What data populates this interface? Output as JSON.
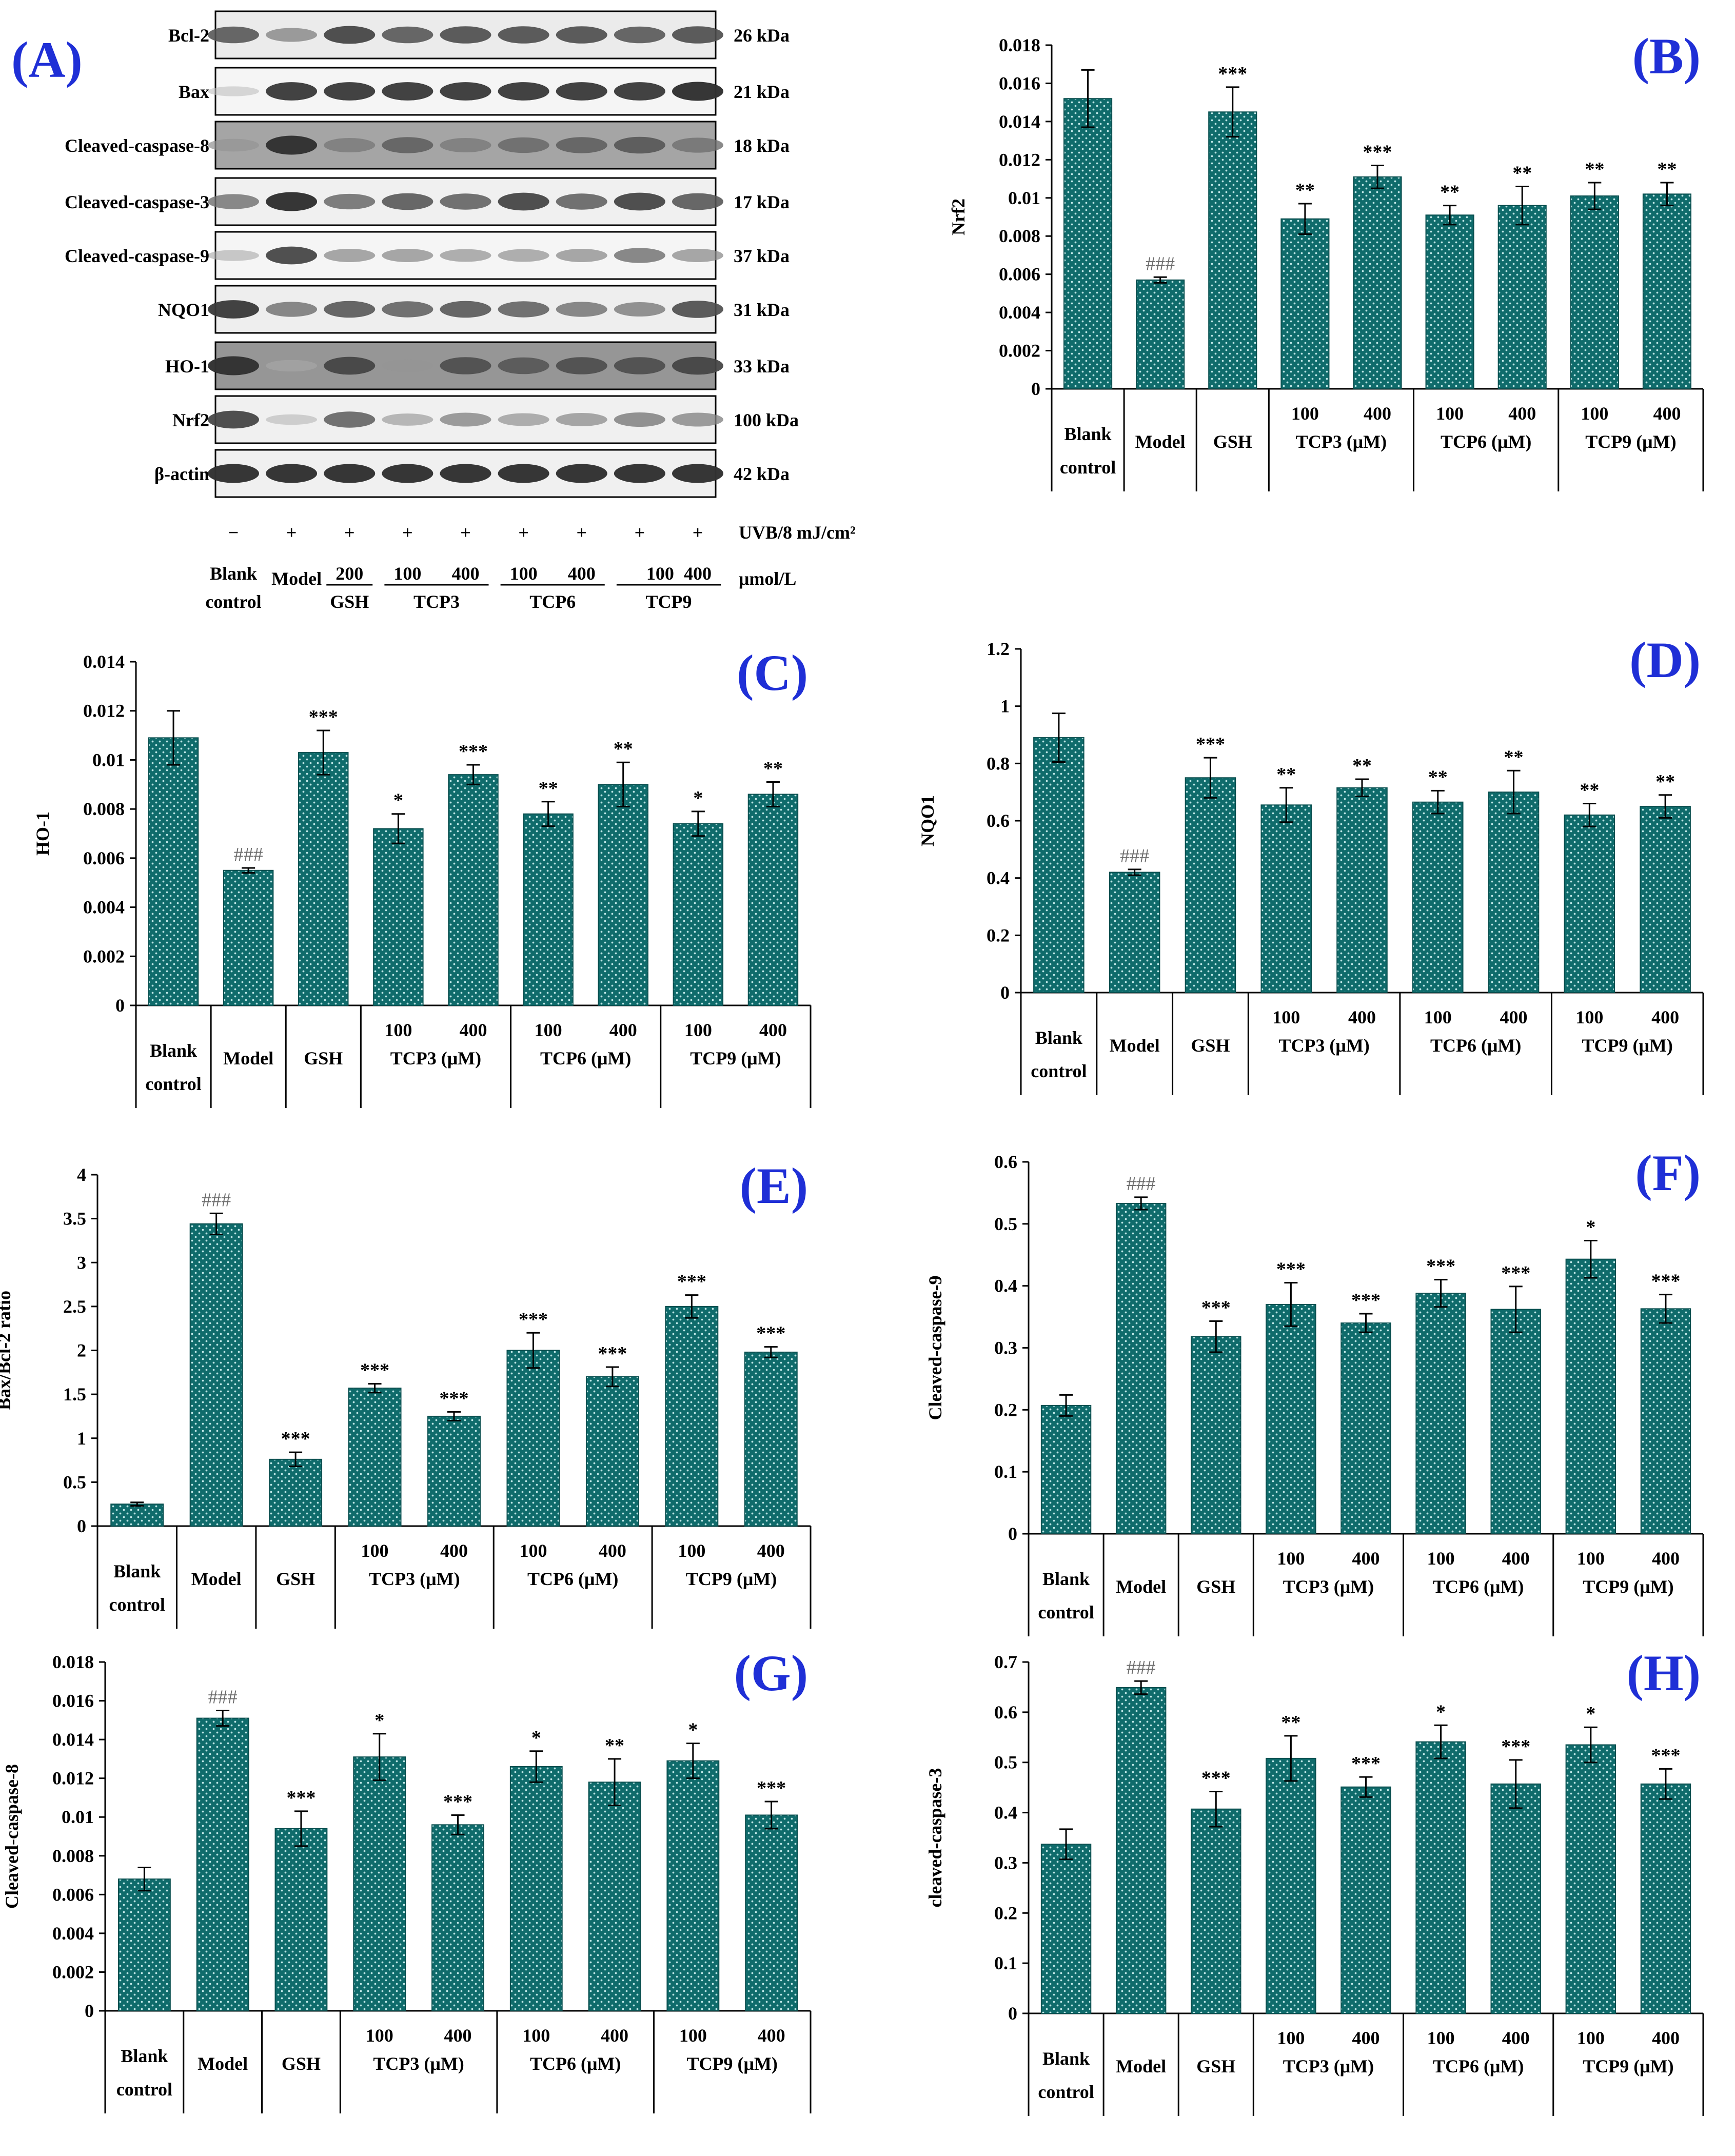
{
  "colors": {
    "bar": "#0f6b6b",
    "bar_dots": "#bfe6e6",
    "panel_label": "#1f2fd6",
    "hash": "#6b6b6b"
  },
  "western_blot": {
    "label": "(A)",
    "proteins": [
      {
        "name": "Bcl-2",
        "kda": "26 kDa"
      },
      {
        "name": "Bax",
        "kda": "21 kDa"
      },
      {
        "name": "Cleaved-caspase-8",
        "kda": "18 kDa"
      },
      {
        "name": "Cleaved-caspase-3",
        "kda": "17 kDa"
      },
      {
        "name": "Cleaved-caspase-9",
        "kda": "37 kDa"
      },
      {
        "name": "NQO1",
        "kda": "31 kDa"
      },
      {
        "name": "HO-1",
        "kda": "33 kDa"
      },
      {
        "name": "Nrf2",
        "kda": "100 kDa"
      },
      {
        "name": "β-actin",
        "kda": "42 kDa"
      }
    ],
    "uvb_signs": [
      "−",
      "+",
      "+",
      "+",
      "+",
      "+",
      "+",
      "+",
      "+"
    ],
    "uvb_label": "UVB/8 mJ/cm²",
    "unit_label": "μmol/L",
    "doses": [
      "200",
      "100",
      "400",
      "100",
      "400",
      "100",
      "400"
    ],
    "group_blank_line1": "Blank",
    "group_blank_line2": "control",
    "group_model": "Model",
    "groups": [
      "GSH",
      "TCP3",
      "TCP6",
      "TCP9"
    ]
  },
  "x_axis": {
    "blank_line1": "Blank",
    "blank_line2": "control",
    "model": "Model",
    "gsh": "GSH",
    "dose_low": "100",
    "dose_high": "400",
    "groups": [
      "TCP3 (μM)",
      "TCP6 (μM)",
      "TCP9 (μM)"
    ]
  },
  "chart_data": [
    {
      "id": "B",
      "type": "bar",
      "label": "(B)",
      "ylabel": "Nrf2",
      "ylim": [
        0,
        0.018
      ],
      "ticks": [
        "0",
        "0.002",
        "0.004",
        "0.006",
        "0.008",
        "0.01",
        "0.012",
        "0.014",
        "0.016",
        "0.018"
      ],
      "categories": [
        "Blank control",
        "Model",
        "GSH",
        "TCP3 100",
        "TCP3 400",
        "TCP6 100",
        "TCP6 400",
        "TCP9 100",
        "TCP9 400"
      ],
      "values": [
        0.0152,
        0.0057,
        0.0145,
        0.0089,
        0.0111,
        0.0091,
        0.0096,
        0.0101,
        0.0102
      ],
      "errors": [
        0.0015,
        0.00015,
        0.0013,
        0.0008,
        0.0006,
        0.0005,
        0.001,
        0.0007,
        0.0006
      ],
      "annotations": [
        "",
        "###",
        "***",
        "**",
        "***",
        "**",
        "**",
        "**",
        "**"
      ]
    },
    {
      "id": "C",
      "type": "bar",
      "label": "(C)",
      "ylabel": "HO-1",
      "ylim": [
        0,
        0.014
      ],
      "ticks": [
        "0",
        "0.002",
        "0.004",
        "0.006",
        "0.008",
        "0.01",
        "0.012",
        "0.014"
      ],
      "categories": [
        "Blank control",
        "Model",
        "GSH",
        "TCP3 100",
        "TCP3 400",
        "TCP6 100",
        "TCP6 400",
        "TCP9 100",
        "TCP9 400"
      ],
      "values": [
        0.0109,
        0.0055,
        0.0103,
        0.0072,
        0.0094,
        0.0078,
        0.009,
        0.0074,
        0.0086
      ],
      "errors": [
        0.0011,
        0.0001,
        0.0009,
        0.0006,
        0.0004,
        0.0005,
        0.0009,
        0.0005,
        0.0005
      ],
      "annotations": [
        "",
        "###",
        "***",
        "*",
        "***",
        "**",
        "**",
        "*",
        "**"
      ]
    },
    {
      "id": "D",
      "type": "bar",
      "label": "(D)",
      "ylabel": "NQO1",
      "ylim": [
        0,
        1.2
      ],
      "ticks": [
        "0",
        "0.2",
        "0.4",
        "0.6",
        "0.8",
        "1",
        "1.2"
      ],
      "categories": [
        "Blank control",
        "Model",
        "GSH",
        "TCP3 100",
        "TCP3 400",
        "TCP6 100",
        "TCP6 400",
        "TCP9 100",
        "TCP9 400"
      ],
      "values": [
        0.89,
        0.42,
        0.75,
        0.655,
        0.715,
        0.665,
        0.7,
        0.62,
        0.65
      ],
      "errors": [
        0.085,
        0.01,
        0.07,
        0.06,
        0.03,
        0.04,
        0.075,
        0.04,
        0.04
      ],
      "annotations": [
        "",
        "###",
        "***",
        "**",
        "**",
        "**",
        "**",
        "**",
        "**"
      ]
    },
    {
      "id": "E",
      "type": "bar",
      "label": "(E)",
      "ylabel": "Bax/Bcl-2 ratio",
      "ylim": [
        0,
        4
      ],
      "ticks": [
        "0",
        "0.5",
        "1",
        "1.5",
        "2",
        "2.5",
        "3",
        "3.5",
        "4"
      ],
      "categories": [
        "Blank control",
        "Model",
        "GSH",
        "TCP3 100",
        "TCP3 400",
        "TCP6 100",
        "TCP6 400",
        "TCP9 100",
        "TCP9 400"
      ],
      "values": [
        0.25,
        3.44,
        0.76,
        1.57,
        1.25,
        2.0,
        1.7,
        2.5,
        1.98
      ],
      "errors": [
        0.02,
        0.12,
        0.08,
        0.05,
        0.05,
        0.2,
        0.11,
        0.13,
        0.06
      ],
      "annotations": [
        "",
        "###",
        "***",
        "***",
        "***",
        "***",
        "***",
        "***",
        "***"
      ]
    },
    {
      "id": "F",
      "type": "bar",
      "label": "(F)",
      "ylabel": "Cleaved-caspase-9",
      "ylim": [
        0,
        0.6
      ],
      "ticks": [
        "0",
        "0.1",
        "0.2",
        "0.3",
        "0.4",
        "0.5",
        "0.6"
      ],
      "categories": [
        "Blank control",
        "Model",
        "GSH",
        "TCP3 100",
        "TCP3 400",
        "TCP6 100",
        "TCP6 400",
        "TCP9 100",
        "TCP9 400"
      ],
      "values": [
        0.207,
        0.533,
        0.318,
        0.37,
        0.34,
        0.388,
        0.362,
        0.443,
        0.363
      ],
      "errors": [
        0.017,
        0.01,
        0.025,
        0.035,
        0.015,
        0.022,
        0.037,
        0.03,
        0.023
      ],
      "annotations": [
        "",
        "###",
        "***",
        "***",
        "***",
        "***",
        "***",
        "*",
        "***"
      ]
    },
    {
      "id": "G",
      "type": "bar",
      "label": "(G)",
      "ylabel": "Cleaved-caspase-8",
      "ylim": [
        0,
        0.018
      ],
      "ticks": [
        "0",
        "0.002",
        "0.004",
        "0.006",
        "0.008",
        "0.01",
        "0.012",
        "0.014",
        "0.016",
        "0.018"
      ],
      "categories": [
        "Blank control",
        "Model",
        "GSH",
        "TCP3 100",
        "TCP3 400",
        "TCP6 100",
        "TCP6 400",
        "TCP9 100",
        "TCP9 400"
      ],
      "values": [
        0.0068,
        0.0151,
        0.0094,
        0.0131,
        0.0096,
        0.0126,
        0.0118,
        0.0129,
        0.0101
      ],
      "errors": [
        0.0006,
        0.0004,
        0.0009,
        0.0012,
        0.0005,
        0.0008,
        0.0012,
        0.0009,
        0.0007
      ],
      "annotations": [
        "",
        "###",
        "***",
        "*",
        "***",
        "*",
        "**",
        "*",
        "***"
      ]
    },
    {
      "id": "H",
      "type": "bar",
      "label": "(H)",
      "ylabel": "cleaved-caspase-3",
      "ylim": [
        0,
        0.7
      ],
      "ticks": [
        "0",
        "0.1",
        "0.2",
        "0.3",
        "0.4",
        "0.5",
        "0.6",
        "0.7"
      ],
      "categories": [
        "Blank control",
        "Model",
        "GSH",
        "TCP3 100",
        "TCP3 400",
        "TCP6 100",
        "TCP6 400",
        "TCP9 100",
        "TCP9 400"
      ],
      "values": [
        0.337,
        0.649,
        0.407,
        0.508,
        0.451,
        0.541,
        0.457,
        0.535,
        0.457
      ],
      "errors": [
        0.03,
        0.013,
        0.035,
        0.045,
        0.02,
        0.033,
        0.048,
        0.035,
        0.03
      ],
      "annotations": [
        "",
        "###",
        "***",
        "**",
        "***",
        "*",
        "***",
        "*",
        "***"
      ]
    }
  ]
}
